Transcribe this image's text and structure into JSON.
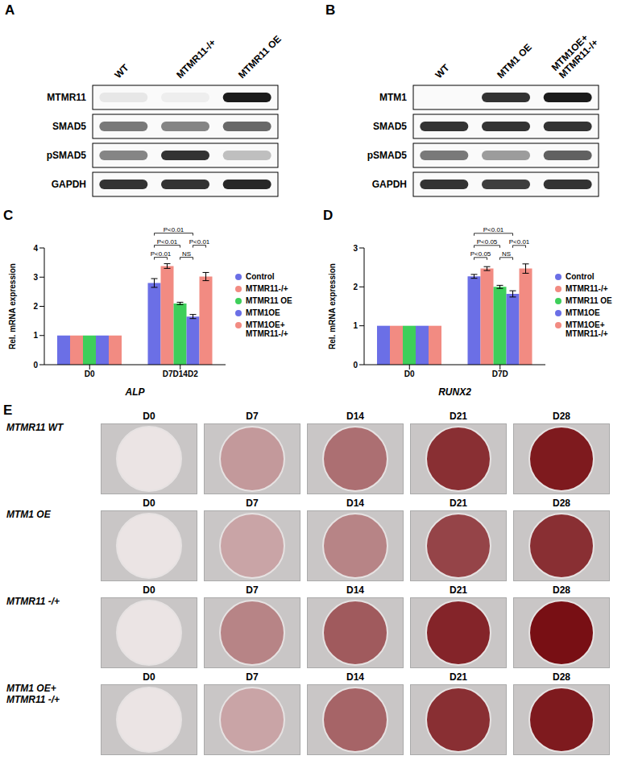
{
  "blots": [
    {
      "panel": "A",
      "lanes": [
        "WT",
        "MTMR11-/+",
        "MTMR11 OE"
      ],
      "rows": [
        {
          "label": "MTMR11",
          "intensity": [
            0.08,
            0.05,
            0.95
          ]
        },
        {
          "label": "SMAD5",
          "intensity": [
            0.55,
            0.5,
            0.62
          ]
        },
        {
          "label": "pSMAD5",
          "intensity": [
            0.5,
            0.85,
            0.25
          ]
        },
        {
          "label": "GAPDH",
          "intensity": [
            0.85,
            0.85,
            0.9
          ]
        }
      ]
    },
    {
      "panel": "B",
      "lanes": [
        "WT",
        "MTM1 OE",
        "MTM1OE+ MTMR11-/+"
      ],
      "rows": [
        {
          "label": "MTM1",
          "intensity": [
            0.0,
            0.85,
            0.95
          ]
        },
        {
          "label": "SMAD5",
          "intensity": [
            0.85,
            0.85,
            0.85
          ]
        },
        {
          "label": "pSMAD5",
          "intensity": [
            0.55,
            0.4,
            0.65
          ]
        },
        {
          "label": "GAPDH",
          "intensity": [
            0.85,
            0.8,
            0.85
          ]
        }
      ]
    }
  ],
  "chart_data": [
    {
      "panel": "C",
      "type": "bar",
      "categories": [
        "D0",
        "D7D14D2"
      ],
      "x_label": "ALP",
      "y_label": "Rel. mRNA expression",
      "ylim": [
        0,
        4
      ],
      "yticks": [
        0,
        1,
        2,
        3,
        4
      ],
      "legend": "right",
      "series": [
        {
          "name": "Control",
          "color": "#6b6fe6",
          "values": [
            1,
            2.8
          ],
          "errors": [
            0,
            0.15
          ]
        },
        {
          "name": "MTMR11-/+",
          "color": "#f28b82",
          "values": [
            1,
            3.38
          ],
          "errors": [
            0,
            0.08
          ]
        },
        {
          "name": "MTMR11 OE",
          "color": "#3ecf5a",
          "values": [
            1,
            2.1
          ],
          "errors": [
            0,
            0.04
          ]
        },
        {
          "name": "MTM1OE",
          "color": "#6b6fe6",
          "values": [
            1,
            1.65
          ],
          "errors": [
            0,
            0.07
          ]
        },
        {
          "name": "MTM1OE+ MTMR11-/+",
          "color": "#f28b82",
          "values": [
            1,
            3.02
          ],
          "errors": [
            0,
            0.14
          ]
        }
      ],
      "annotations": [
        {
          "category": "D7D14D2",
          "from": "Control",
          "to": "MTMR11-/+",
          "label": "P<0.01"
        },
        {
          "category": "D7D14D2",
          "from": "MTMR11 OE",
          "to": "MTM1OE",
          "label": "NS"
        },
        {
          "category": "D7D14D2",
          "from": "MTM1OE",
          "to": "MTM1OE+ MTMR11-/+",
          "label": "P<0.01"
        },
        {
          "category": "D7D14D2",
          "from": "Control",
          "to": "MTMR11 OE",
          "label": "P<0.01"
        },
        {
          "category": "D7D14D2",
          "from": "Control",
          "to": "MTM1OE",
          "label": "P<0.01"
        }
      ]
    },
    {
      "panel": "D",
      "type": "bar",
      "categories": [
        "D0",
        "D7D"
      ],
      "x_label": "RUNX2",
      "y_label": "Rel. mRNA expression",
      "ylim": [
        0,
        3
      ],
      "yticks": [
        0,
        1,
        2,
        3
      ],
      "legend": "right",
      "series": [
        {
          "name": "Control",
          "color": "#6b6fe6",
          "values": [
            1,
            2.27
          ],
          "errors": [
            0,
            0.05
          ]
        },
        {
          "name": "MTMR11-/+",
          "color": "#f28b82",
          "values": [
            1,
            2.47
          ],
          "errors": [
            0,
            0.05
          ]
        },
        {
          "name": "MTMR11 OE",
          "color": "#3ecf5a",
          "values": [
            1,
            2.0
          ],
          "errors": [
            0,
            0.04
          ]
        },
        {
          "name": "MTM1OE",
          "color": "#6b6fe6",
          "values": [
            1,
            1.82
          ],
          "errors": [
            0,
            0.08
          ]
        },
        {
          "name": "MTM1OE+ MTMR11-/+",
          "color": "#f28b82",
          "values": [
            1,
            2.47
          ],
          "errors": [
            0,
            0.12
          ]
        }
      ],
      "annotations": [
        {
          "category": "D7D",
          "from": "Control",
          "to": "MTMR11-/+",
          "label": "P<0.05"
        },
        {
          "category": "D7D",
          "from": "MTMR11 OE",
          "to": "MTM1OE",
          "label": "NS"
        },
        {
          "category": "D7D",
          "from": "MTM1OE",
          "to": "MTM1OE+ MTMR11-/+",
          "label": "P<0.01"
        },
        {
          "category": "D7D",
          "from": "Control",
          "to": "MTMR11 OE",
          "label": "P<0.05"
        },
        {
          "category": "D7D",
          "from": "Control",
          "to": "MTM1OE",
          "label": "P<0.01"
        }
      ]
    }
  ],
  "staining": {
    "panel": "E",
    "columns": [
      "D0",
      "D7",
      "D14",
      "D21",
      "D28"
    ],
    "rows": [
      {
        "label": "MTMR11 WT",
        "stain": [
          0.0,
          0.35,
          0.55,
          0.85,
          0.95
        ]
      },
      {
        "label": "MTM1 OE",
        "stain": [
          0.0,
          0.3,
          0.45,
          0.75,
          0.85
        ]
      },
      {
        "label": "MTMR11 -/+",
        "stain": [
          0.0,
          0.45,
          0.65,
          0.9,
          1.0
        ]
      },
      {
        "label": "MTM1 OE+ MTMR11 -/+",
        "stain": [
          0.0,
          0.3,
          0.6,
          0.85,
          0.95
        ]
      }
    ]
  }
}
